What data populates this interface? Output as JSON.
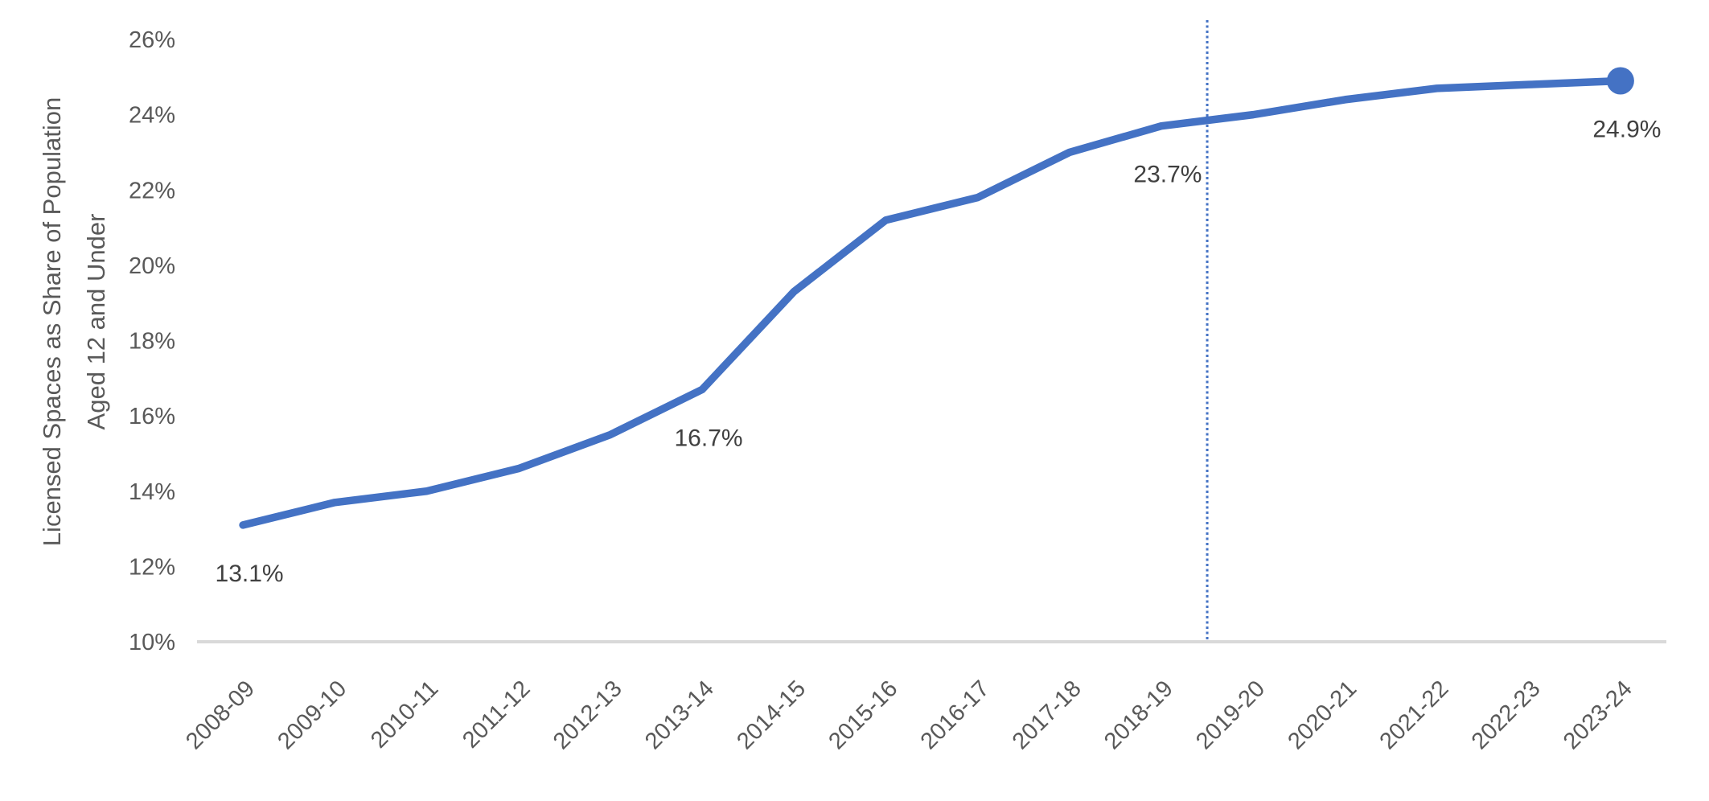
{
  "chart_data": {
    "type": "line",
    "title": "",
    "ylabel_line1": "Licensed Spaces as Share of Population",
    "ylabel_line2": "Aged 12 and Under",
    "categories": [
      "2008-09",
      "2009-10",
      "2010-11",
      "2011-12",
      "2012-13",
      "2013-14",
      "2014-15",
      "2015-16",
      "2016-17",
      "2017-18",
      "2018-19",
      "2019-20",
      "2020-21",
      "2021-22",
      "2022-23",
      "2023-24"
    ],
    "values": [
      13.1,
      13.7,
      14.0,
      14.6,
      15.5,
      16.7,
      19.3,
      21.2,
      21.8,
      23.0,
      23.7,
      24.0,
      24.4,
      24.7,
      24.8,
      24.9
    ],
    "ylim": [
      10,
      26
    ],
    "ytick_step": 2,
    "yticks": [
      "10%",
      "12%",
      "14%",
      "16%",
      "18%",
      "20%",
      "22%",
      "24%",
      "26%"
    ],
    "xtick_rotation_deg": -45,
    "grid": false,
    "legend": false,
    "data_labels": [
      {
        "category": "2008-09",
        "text": "13.1%"
      },
      {
        "category": "2013-14",
        "text": "16.7%"
      },
      {
        "category": "2018-19",
        "text": "23.7%"
      },
      {
        "category": "2023-24",
        "text": "24.9%"
      }
    ],
    "reference_line": {
      "orientation": "vertical",
      "position_between": [
        "2018-19",
        "2019-20"
      ],
      "style": "dotted"
    },
    "end_marker_category": "2023-24"
  },
  "colors": {
    "series_line": "#4472C4",
    "end_marker": "#4472C4",
    "reference_line": "#4472C4",
    "axis_line": "#D9D9D9",
    "axis_text": "#595959",
    "data_label_text": "#404040",
    "background": "#FFFFFF"
  }
}
